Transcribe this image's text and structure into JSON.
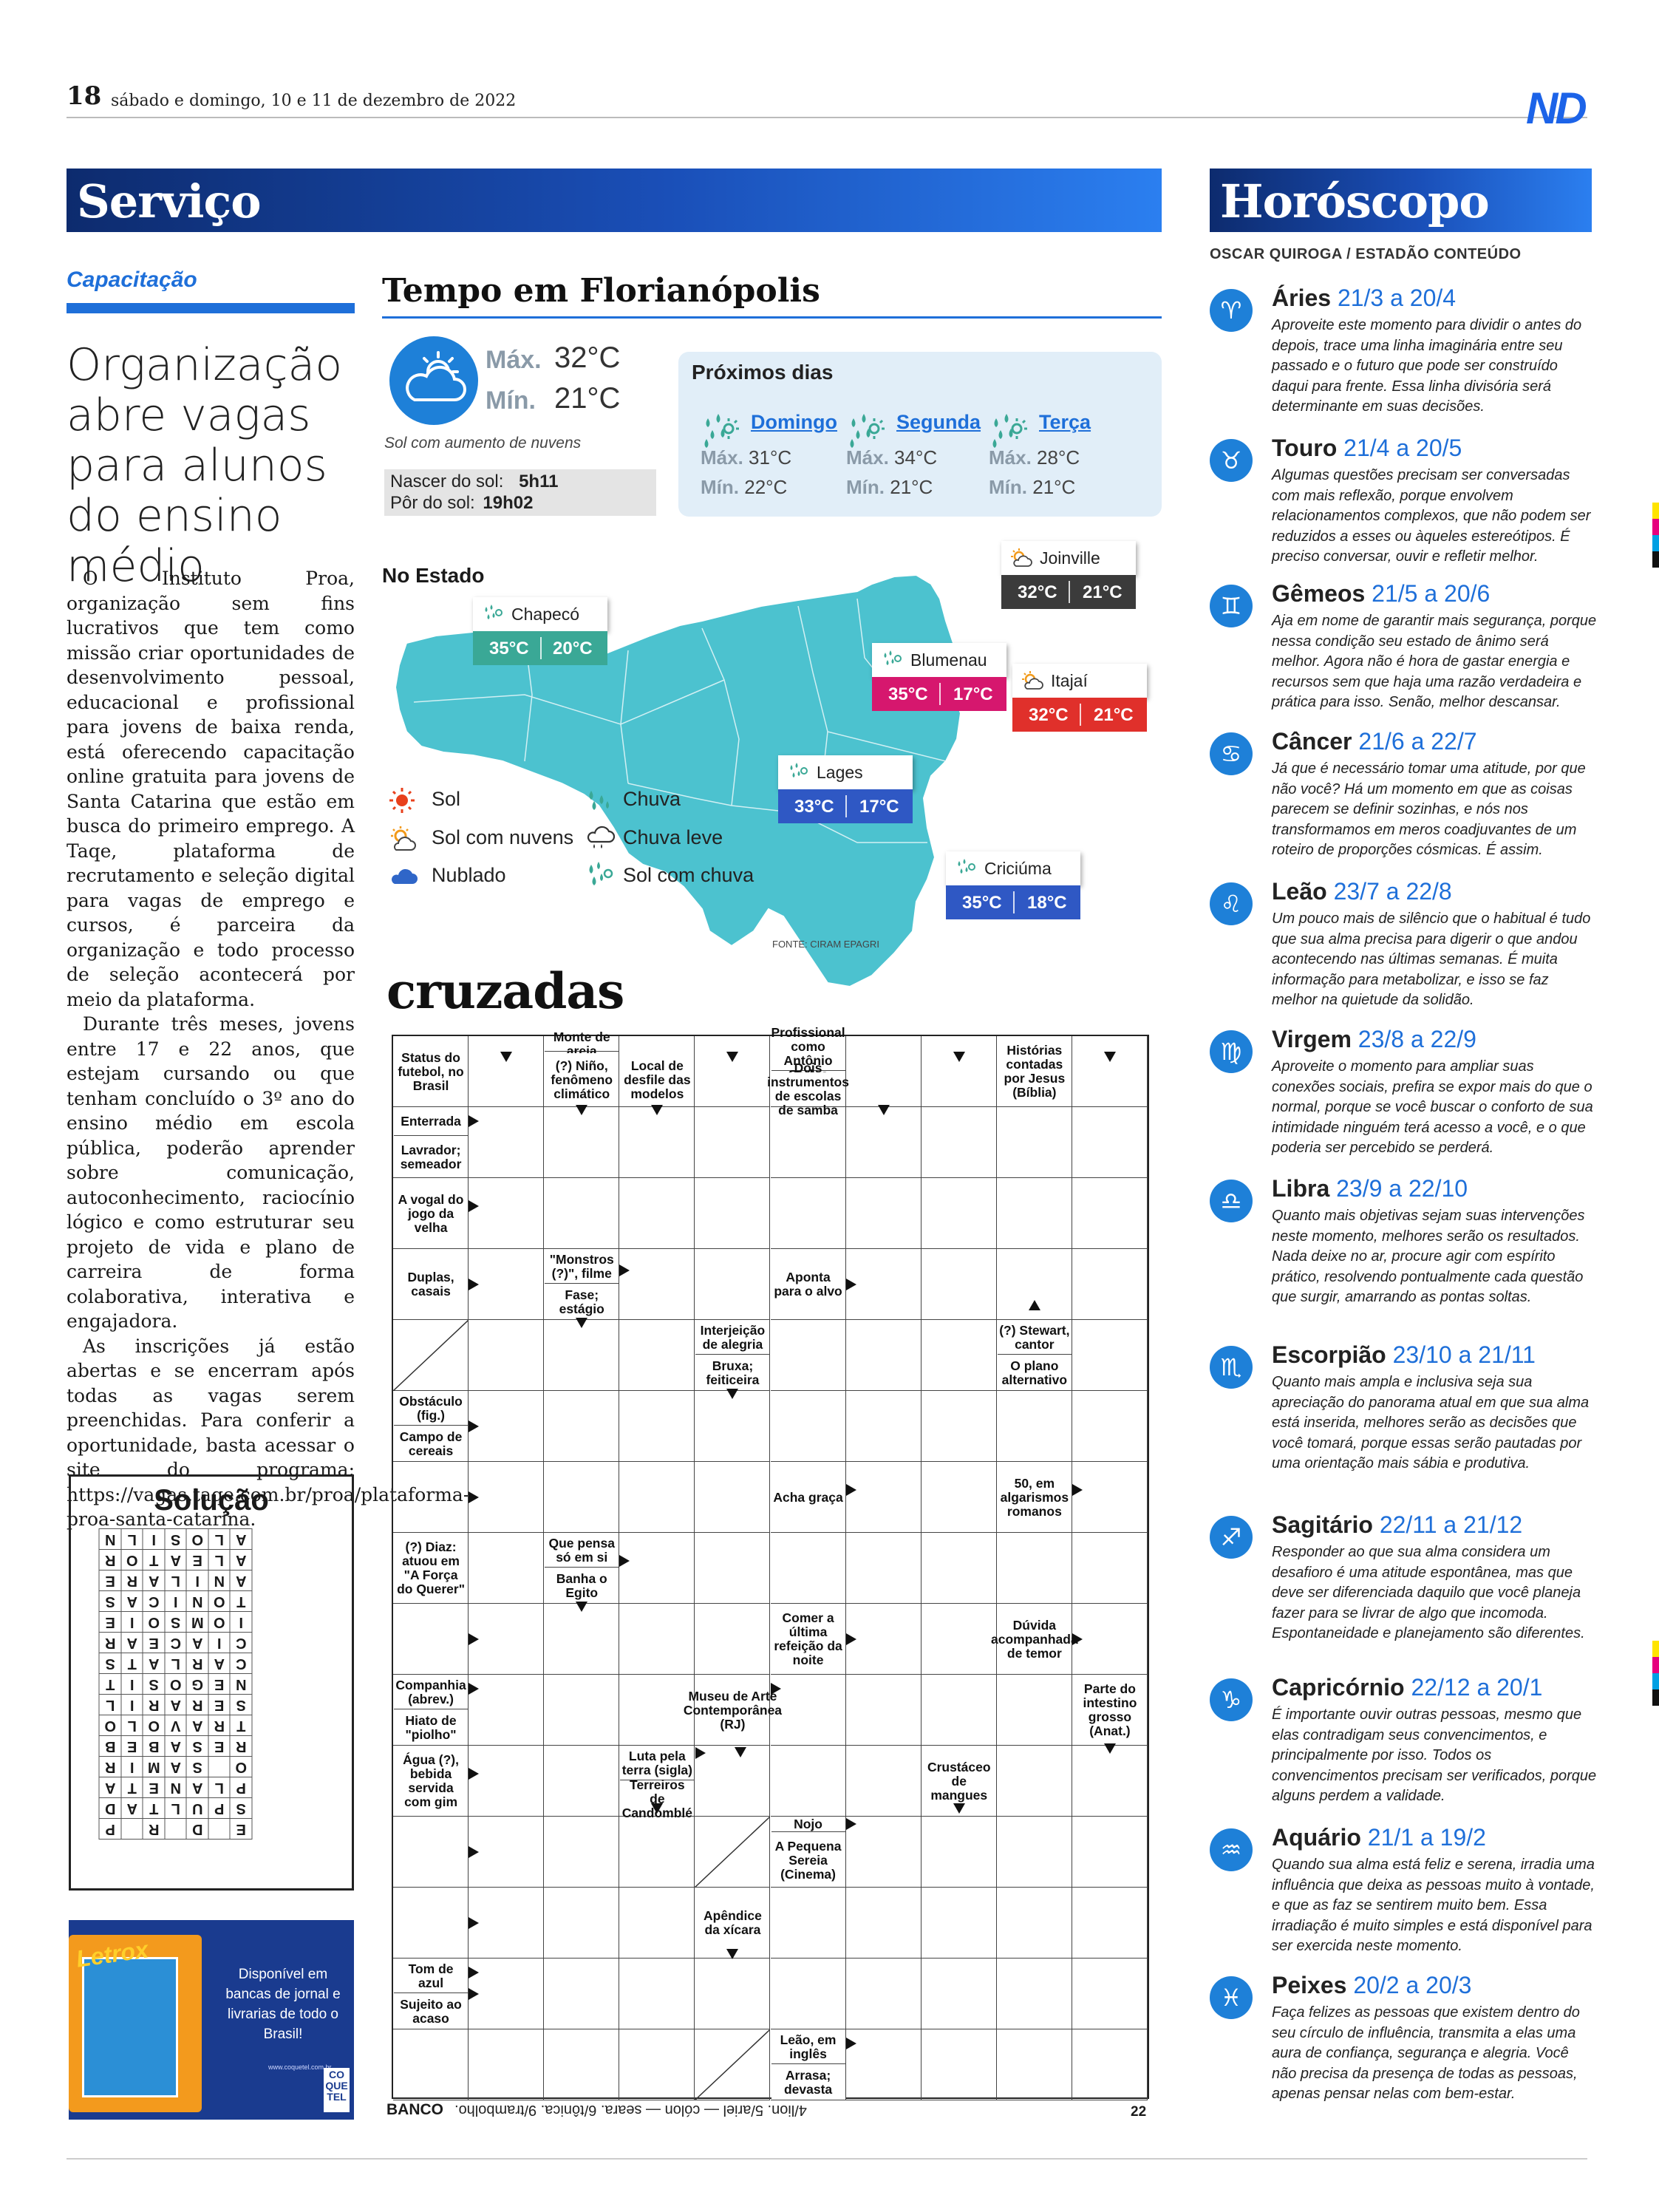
{
  "header": {
    "page_number": "18",
    "date": "sábado e domingo, 10 e 11 de dezembro de 2022",
    "logo": "ND"
  },
  "servico": {
    "section_title": "Serviço",
    "kicker": "Capacitação",
    "headline": "Organização abre vagas para alunos do ensino médio",
    "body": [
      "O Instituto Proa, organização sem fins lucrativos que tem como missão criar oportunidades de desenvolvimento pessoal, educacional e profissional para jovens de baixa renda, está oferecendo capacitação online gratuita para jovens de Santa Catarina que estão em busca do primeiro emprego. A Taqe, plataforma de recrutamento e seleção digital para vagas de emprego e cursos, é parceira da organização e todo processo de seleção acontecerá por meio da plataforma.",
      "Durante três meses, jovens entre 17 e 22 anos, que estejam cursando ou que tenham concluído o 3º ano do ensino médio em escola pública, poderão aprender sobre comunicação, autoconhecimento, raciocínio lógico e como estruturar seu projeto de vida e plano de carreira de forma colaborativa, interativa e engajadora.",
      "As inscrições já estão abertas e se encerram após todas as vagas serem preenchidas. Para conferir a oportunidade, basta acessar o site do programa: https://vagas.taqe.com.br/proa/plataforma-proa-santa-catarina."
    ]
  },
  "solucao": {
    "title": "Solução",
    "grid": [
      [
        "E",
        " ",
        "D",
        " ",
        "R",
        " ",
        "P"
      ],
      [
        "S",
        "P",
        "U",
        "L",
        "T",
        "A",
        "D"
      ],
      [
        "P",
        "L",
        "A",
        "N",
        "E",
        "T",
        "A"
      ],
      [
        "O",
        " ",
        "S",
        "A",
        "M",
        "I",
        "R"
      ],
      [
        "R",
        "E",
        "S",
        "A",
        "B",
        "E",
        "B"
      ],
      [
        "T",
        "R",
        "A",
        "V",
        "O",
        "L",
        "O"
      ],
      [
        "S",
        "E",
        "R",
        "A",
        "R",
        "I",
        "L"
      ],
      [
        "N",
        "E",
        "G",
        "O",
        "S",
        "I",
        "T"
      ],
      [
        "C",
        "A",
        "R",
        "L",
        "A",
        "T",
        "S"
      ],
      [
        "C",
        "I",
        "A",
        "C",
        "E",
        "A",
        "R"
      ],
      [
        "I",
        "O",
        "M",
        "S",
        "O",
        "I",
        "E"
      ],
      [
        "T",
        "O",
        "N",
        "I",
        "C",
        "A",
        "S"
      ],
      [
        "A",
        "N",
        "I",
        "L",
        "A",
        "R",
        "E"
      ],
      [
        "A",
        "L",
        "E",
        "A",
        "T",
        "O",
        "R"
      ],
      [
        "A",
        "L",
        "O",
        "S",
        "I",
        "L",
        "N"
      ]
    ]
  },
  "ad": {
    "book_title": "Letrox",
    "text": "Disponível em bancas de jornal e livrarias de todo o Brasil!",
    "url": "www.coquetel.com.br",
    "brand": "CO QUE TEL"
  },
  "weather": {
    "title": "Tempo em Florianópolis",
    "max_label": "Máx.",
    "max": "32°C",
    "min_label": "Mín.",
    "min": "21°C",
    "description": "Sol com aumento de nuvens",
    "sunrise_label": "Nascer do sol:",
    "sunrise": "5h11",
    "sunset_label": "Pôr do sol:",
    "sunset": "19h02",
    "next_title": "Próximos dias",
    "days": [
      {
        "name": "Domingo",
        "max": "31°C",
        "min": "22°C"
      },
      {
        "name": "Segunda",
        "max": "34°C",
        "min": "21°C"
      },
      {
        "name": "Terça",
        "max": "28°C",
        "min": "21°C"
      }
    ],
    "state_title": "No Estado",
    "source": "FONTE: CIRAM EPAGRI",
    "cities": [
      {
        "name": "Chapecó",
        "max": "35°C",
        "min": "20°C",
        "color": "#3aa896"
      },
      {
        "name": "Joinville",
        "max": "32°C",
        "min": "21°C",
        "color": "#3b3b3b"
      },
      {
        "name": "Blumenau",
        "max": "35°C",
        "min": "17°C",
        "color": "#d6176e"
      },
      {
        "name": "Itajaí",
        "max": "32°C",
        "min": "21°C",
        "color": "#e0302b"
      },
      {
        "name": "Lages",
        "max": "33°C",
        "min": "17°C",
        "color": "#2f58c4"
      },
      {
        "name": "Criciúma",
        "max": "35°C",
        "min": "18°C",
        "color": "#2f58c4"
      }
    ],
    "legend": [
      "Sol",
      "Chuva",
      "Sol com nuvens",
      "Chuva leve",
      "Nublado",
      "Sol com chuva"
    ],
    "map_color": "#4cc2cf"
  },
  "crosswords": {
    "title": "cruzadas",
    "clues": {
      "c1": "Status do futebol, no Brasil",
      "c2": "Monte de areia",
      "c3": "(?) Niño, fenômeno climático",
      "c4": "Local de desfile das modelos",
      "c5": "Profissional como Antônio Carlos",
      "c6": "Dois instrumentos de escolas de samba",
      "c7": "Histórias contadas por Jesus (Bíblia)",
      "c8": "Enterrada",
      "c9": "Lavrador; semeador",
      "c10": "A vogal do jogo da velha",
      "c11": "Duplas, casais",
      "c12": "\"Monstros (?)\", filme",
      "c13": "Fase; estágio",
      "c14": "Aponta para o alvo",
      "c15": "Interjeição de alegria",
      "c16": "Bruxa; feiticeira",
      "c17": "(?) Stewart, cantor",
      "c18": "O plano alternativo",
      "c19": "Obstáculo (fig.)",
      "c20": "Campo de cereais",
      "c21": "Acha graça",
      "c22": "50, em algarismos romanos",
      "c23": "(?) Diaz: atuou em \"A Força do Querer\"",
      "c24": "Que pensa só em si",
      "c25": "Banha o Egito",
      "c26": "Comer a última refeição da noite",
      "c27": "Dúvida acompanhada de temor",
      "c28": "Companhia (abrev.)",
      "c29": "Hiato de \"piolho\"",
      "c30": "Museu de Arte Contemporânea (RJ)",
      "c31": "Parte do intestino grosso (Anat.)",
      "c32": "Água (?), bebida servida com gim",
      "c33": "Luta pela terra (sigla)",
      "c34": "Terreiros de Candomblé",
      "c35": "Crustáceo de mangues",
      "c36": "Nojo",
      "c37": "A Pequena Sereia (Cinema)",
      "c38": "Apêndice da xícara",
      "c39": "Tom de azul",
      "c40": "Sujeito ao acaso",
      "c41": "Leão, em inglês",
      "c42": "Arrasa; devasta"
    },
    "bank_label": "BANCO",
    "bank_text": "4/lion. 5/ariel — cólon — seara. 6/tônica. 9/trambolho.",
    "bank_number": "22"
  },
  "horoscope": {
    "section_title": "Horóscopo",
    "credit": "OSCAR QUIROGA / ESTADÃO CONTEÚDO",
    "signs": [
      {
        "glyph": "♈",
        "name": "Áries",
        "dates": "21/3 a 20/4",
        "text": "Aproveite este momento para dividir o antes do depois, trace uma linha imaginária entre seu passado e o futuro que pode ser construído daqui para frente. Essa linha divisória será determinante em suas decisões."
      },
      {
        "glyph": "♉",
        "name": "Touro",
        "dates": "21/4 a 20/5",
        "text": "Algumas questões precisam ser conversadas com mais reflexão, porque envolvem relacionamentos complexos, que não podem ser reduzidos a esses ou àqueles estereótipos. É preciso conversar, ouvir e refletir melhor."
      },
      {
        "glyph": "♊",
        "name": "Gêmeos",
        "dates": "21/5 a 20/6",
        "text": "Aja em nome de garantir mais segurança, porque nessa condição seu estado de ânimo será melhor. Agora não é hora de gastar energia e recursos sem que haja uma razão verdadeira e prática para isso. Senão, melhor descansar."
      },
      {
        "glyph": "♋",
        "name": "Câncer",
        "dates": "21/6 a 22/7",
        "text": "Já que é necessário tomar uma atitude, por que não você? Há um momento em que as coisas parecem se definir sozinhas, e nós nos transformamos em meros coadjuvantes de um roteiro de proporções cósmicas. É assim."
      },
      {
        "glyph": "♌",
        "name": "Leão",
        "dates": "23/7 a 22/8",
        "text": "Um pouco mais de silêncio que o habitual é tudo que sua alma precisa para digerir o que andou acontecendo nas últimas semanas. É muita informação para metabolizar, e isso se faz melhor na quietude da solidão."
      },
      {
        "glyph": "♍",
        "name": "Virgem",
        "dates": "23/8 a 22/9",
        "text": "Aproveite o momento para ampliar suas conexões sociais, prefira se expor mais do que o normal, porque se você buscar o conforto de sua intimidade ninguém terá acesso a você, e o que poderia ser percebido se perderá."
      },
      {
        "glyph": "♎",
        "name": "Libra",
        "dates": "23/9 a 22/10",
        "text": "Quanto mais objetivas sejam suas intervenções neste momento, melhores serão os resultados. Nada deixe no ar, procure agir com espírito prático, resolvendo pontualmente cada questão que surgir, amarrando as pontas soltas."
      },
      {
        "glyph": "♏",
        "name": "Escorpião",
        "dates": "23/10 a 21/11",
        "text": "Quanto mais ampla e inclusiva seja sua apreciação do panorama atual em que sua alma está inserida, melhores serão as decisões que você tomará, porque essas serão pautadas por uma orientação mais sábia e produtiva."
      },
      {
        "glyph": "♐",
        "name": "Sagitário",
        "dates": "22/11 a 21/12",
        "text": "Responder ao que sua alma considera um desafioro é uma atitude espontânea, mas que deve ser diferenciada daquilo que você planeja fazer para se livrar de algo que incomoda. Espontaneidade e planejamento são diferentes."
      },
      {
        "glyph": "♑",
        "name": "Capricórnio",
        "dates": "22/12 a 20/1",
        "text": "É importante ouvir outras pessoas, mesmo que elas contradigam seus convencimentos, e principalmente por isso. Todos os convencimentos precisam ser verificados, porque alguns perdem a validade."
      },
      {
        "glyph": "♒",
        "name": "Aquário",
        "dates": "21/1 a 19/2",
        "text": "Quando sua alma está feliz e serena, irradia uma influência que deixa as pessoas muito à vontade, e que as faz se sentirem muito bem. Essa irradiação é muito simples e está disponível para ser exercida neste momento."
      },
      {
        "glyph": "♓",
        "name": "Peixes",
        "dates": "20/2 a 20/3",
        "text": "Faça felizes as pessoas que existem dentro do seu círculo de influência, transmita a elas uma aura de confiança, segurança e alegria. Você não precisa da presença de todas as pessoas, apenas pensar nelas com bem-estar."
      }
    ]
  }
}
